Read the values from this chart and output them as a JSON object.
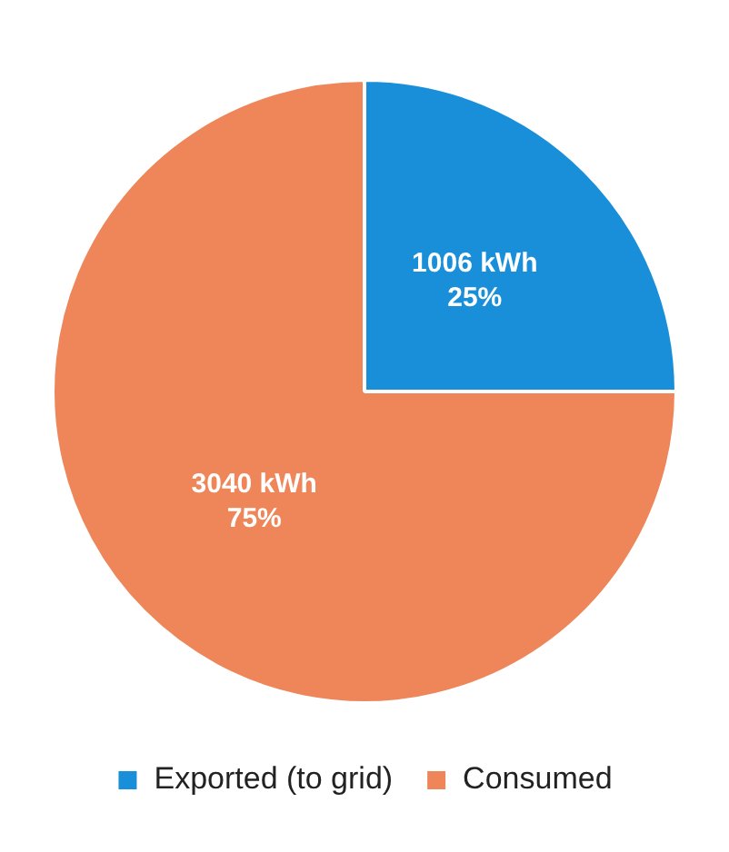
{
  "chart_data": {
    "type": "pie",
    "categories": [
      "Exported (to grid)",
      "Consumed"
    ],
    "values": [
      25,
      75
    ],
    "colors": [
      "#1a8fd9",
      "#ee8659"
    ],
    "value_labels": [
      "1006 kWh\n25%",
      "3040 kWh\n75%"
    ],
    "legend": "bottom"
  }
}
